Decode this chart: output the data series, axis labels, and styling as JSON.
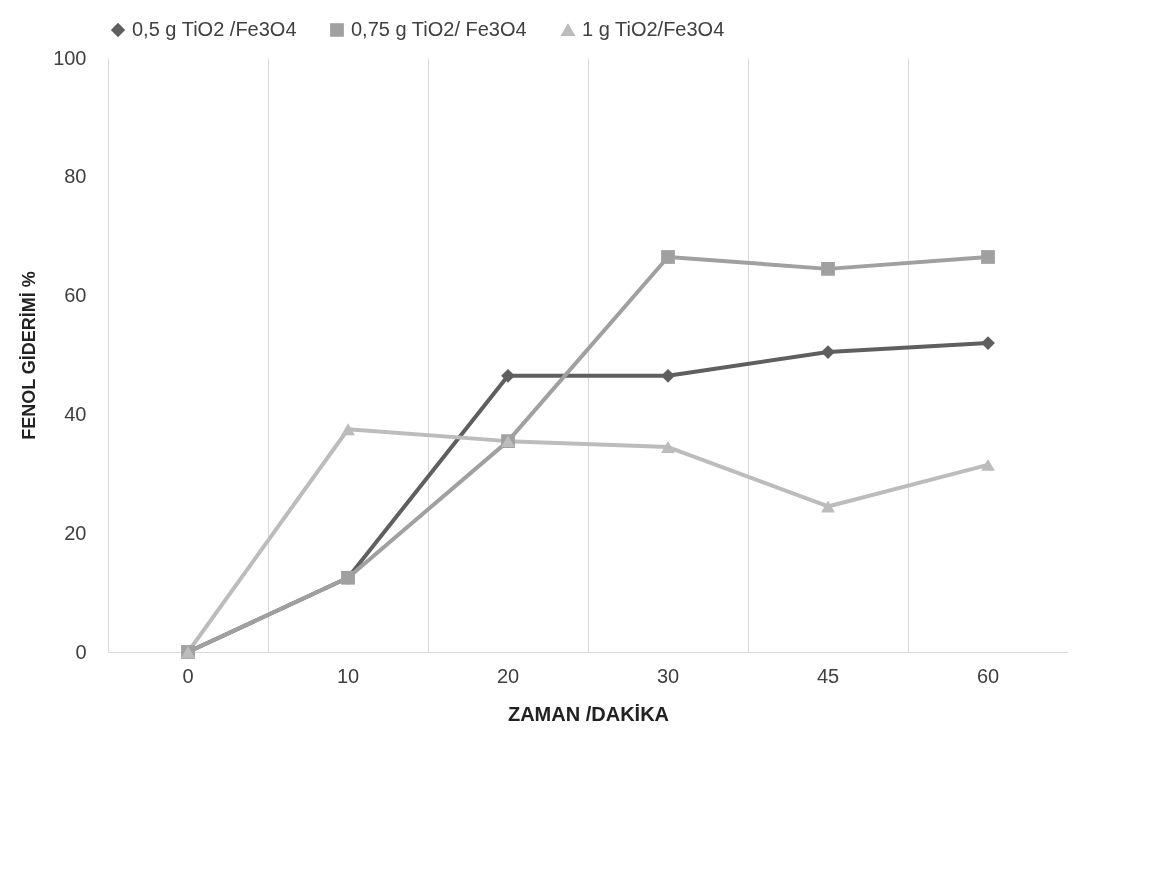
{
  "chart_data": {
    "type": "line",
    "xlabel": "ZAMAN /DAKİKA",
    "ylabel": "FENOL GİDERİMİ %",
    "categories": [
      "0",
      "10",
      "20",
      "30",
      "45",
      "60"
    ],
    "series": [
      {
        "name": "0,5 g TiO2 /Fe3O4",
        "color": "#5f5f5f",
        "marker": "diamond",
        "values": [
          0,
          12.5,
          46.5,
          46.5,
          50.5,
          52
        ]
      },
      {
        "name": "0,75 g TiO2/ Fe3O4",
        "color": "#a0a0a0",
        "marker": "square",
        "values": [
          0,
          12.5,
          35.5,
          66.5,
          64.5,
          66.5
        ]
      },
      {
        "name": "1 g TiO2/Fe3O4",
        "color": "#bcbcbc",
        "marker": "triangle",
        "values": [
          0,
          37.5,
          35.5,
          34.5,
          24.5,
          31.5
        ]
      }
    ],
    "ylim": [
      0,
      100
    ],
    "yticks": [
      0,
      20,
      40,
      60,
      80,
      100
    ],
    "grid": "x",
    "legend": "top"
  }
}
